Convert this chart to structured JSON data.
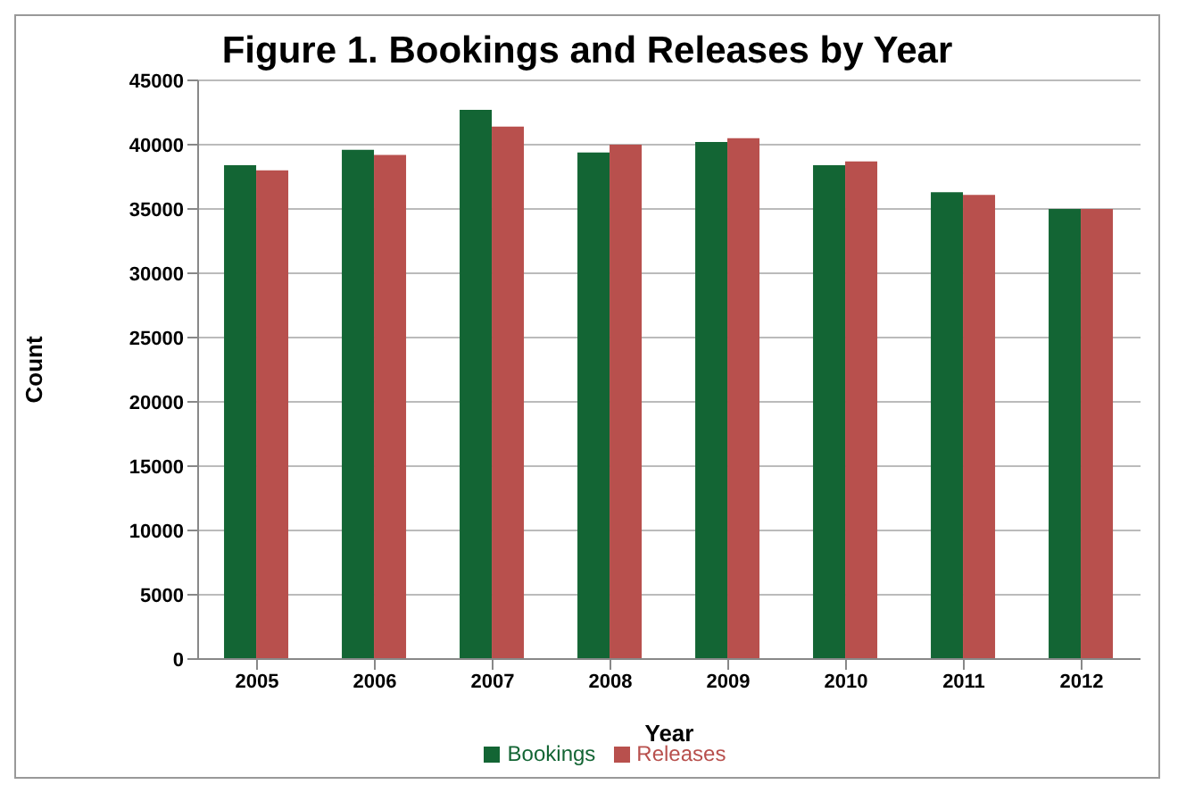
{
  "chart_data": {
    "type": "bar",
    "title": "Figure 1.  Bookings and Releases by Year",
    "xlabel": "Year",
    "ylabel": "Count",
    "categories": [
      "2005",
      "2006",
      "2007",
      "2008",
      "2009",
      "2010",
      "2011",
      "2012"
    ],
    "series": [
      {
        "name": "Bookings",
        "color": "#136534",
        "values": [
          38400,
          39600,
          42700,
          39400,
          40200,
          38400,
          36300,
          35000
        ]
      },
      {
        "name": "Releases",
        "color": "#b8504d",
        "values": [
          38000,
          39200,
          41400,
          40000,
          40500,
          38700,
          36100,
          35000
        ]
      }
    ],
    "ylim": [
      0,
      45000
    ],
    "yticks": [
      0,
      5000,
      10000,
      15000,
      20000,
      25000,
      30000,
      35000,
      40000,
      45000
    ],
    "grid": "y",
    "legend": "bottom"
  }
}
